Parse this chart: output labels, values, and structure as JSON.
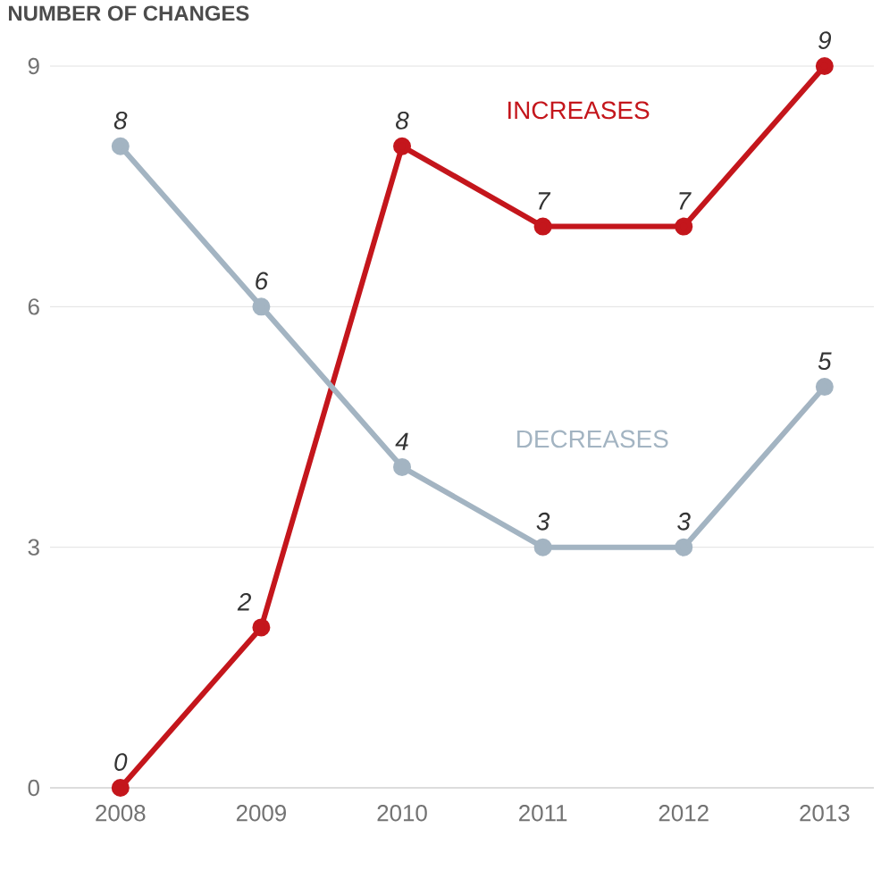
{
  "chart_data": {
    "type": "line",
    "ylabel": "NUMBER OF CHANGES",
    "categories": [
      "2008",
      "2009",
      "2010",
      "2011",
      "2012",
      "2013"
    ],
    "series": [
      {
        "name": "INCREASES",
        "color": "#c4161c",
        "values": [
          0,
          2,
          8,
          7,
          7,
          9
        ]
      },
      {
        "name": "DECREASES",
        "color": "#a3b4c2",
        "values": [
          8,
          6,
          4,
          3,
          3,
          5
        ]
      }
    ],
    "ylim": [
      0,
      9
    ],
    "yticks": [
      0,
      3,
      6,
      9
    ],
    "grid": "y",
    "marker": "circle",
    "line_style": "solid",
    "data_labels": true
  }
}
